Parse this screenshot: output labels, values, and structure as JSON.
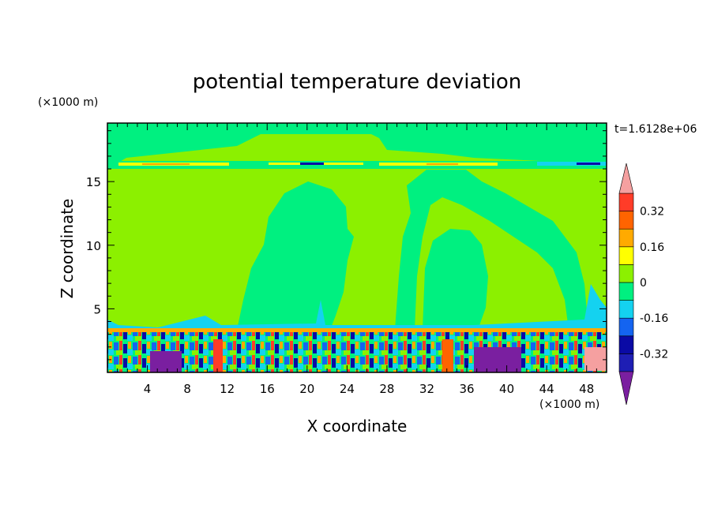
{
  "chart_data": {
    "type": "heatmap",
    "title": "potential temperature deviation",
    "xlabel": "X coordinate",
    "ylabel": "Z coordinate",
    "x_unit": "(×1000 m)",
    "y_unit": "(×1000 m)",
    "time_label": "t=1.6128e+06",
    "xlim": [
      0,
      50
    ],
    "ylim": [
      0,
      19.6
    ],
    "x_ticks": [
      4,
      8,
      12,
      16,
      20,
      24,
      28,
      32,
      36,
      40,
      44,
      48
    ],
    "x_tick_labels": [
      "4",
      "8",
      "12",
      "16",
      "20",
      "24",
      "28",
      "32",
      "36",
      "40",
      "44",
      "48"
    ],
    "y_ticks": [
      5,
      10,
      15
    ],
    "y_tick_labels": [
      "5",
      "10",
      "15"
    ],
    "colorbar": {
      "levels": [
        -0.4,
        -0.32,
        -0.24,
        -0.16,
        -0.08,
        0,
        0.08,
        0.16,
        0.24,
        0.32,
        0.4
      ],
      "labels": [
        "0.32",
        "0.16",
        "0",
        "-0.16",
        "-0.32"
      ],
      "label_values": [
        0.32,
        0.16,
        0,
        -0.16,
        -0.32
      ],
      "colors": [
        "#7a1fa0",
        "#1e1eb4",
        "#0a0aa5",
        "#1464f0",
        "#14d2f0",
        "#00f080",
        "#8cf000",
        "#ffff00",
        "#ffaa00",
        "#ff6400",
        "#ff3c28",
        "#f5a0a0"
      ],
      "extend": "both"
    },
    "field_summary": [
      {
        "z_range": [
          17.0,
          19.6
        ],
        "dominant_value_range": [
          -0.08,
          0.08
        ]
      },
      {
        "z_range": [
          16.4,
          17.0
        ],
        "dominant_value_range": [
          -0.4,
          0.4
        ]
      },
      {
        "z_range": [
          3.5,
          16.4
        ],
        "dominant_value_range": [
          -0.08,
          0.08
        ]
      },
      {
        "z_range": [
          0,
          3.5
        ],
        "dominant_value_range": [
          -0.48,
          0.48
        ]
      }
    ]
  }
}
